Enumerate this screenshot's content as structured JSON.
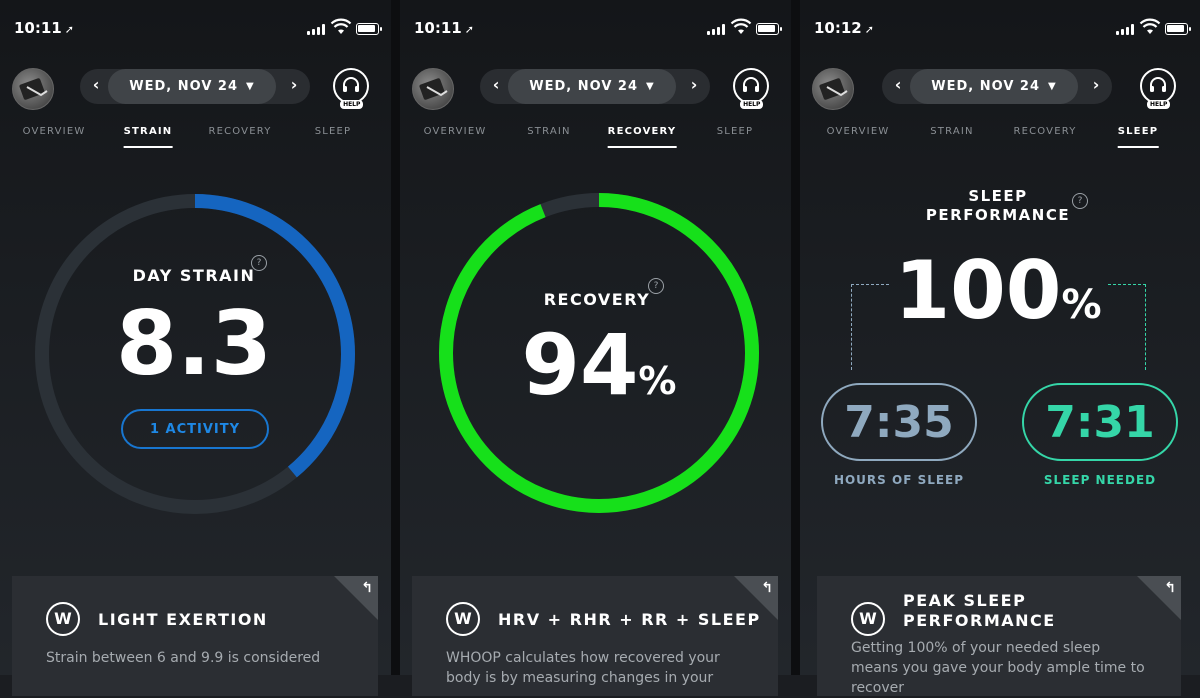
{
  "colors": {
    "strain_blue": "#1565c0",
    "recovery_green": "#16e01a",
    "sleep_teal": "#35d6a8",
    "sleep_grey_blue": "#8fa9bf",
    "track": "#2b3137"
  },
  "screens": [
    {
      "status_time": "10:11",
      "date": "WED, NOV 24",
      "help_label": "HELP",
      "tabs": [
        "OVERVIEW",
        "STRAIN",
        "RECOVERY",
        "SLEEP"
      ],
      "active_tab": "STRAIN",
      "gauge_label": "DAY STRAIN",
      "gauge_value": "8.3",
      "gauge_fraction": 0.39,
      "activity_button": "1 ACTIVITY",
      "card_title": "LIGHT EXERTION",
      "card_text": "Strain between 6 and 9.9 is considered"
    },
    {
      "status_time": "10:11",
      "date": "WED, NOV 24",
      "help_label": "HELP",
      "tabs": [
        "OVERVIEW",
        "STRAIN",
        "RECOVERY",
        "SLEEP"
      ],
      "active_tab": "RECOVERY",
      "gauge_label": "RECOVERY",
      "gauge_value": "94",
      "gauge_unit": "%",
      "gauge_fraction": 0.94,
      "card_title": "HRV + RHR + RR + SLEEP",
      "card_text": "WHOOP calculates how recovered your body is by measuring changes in your"
    },
    {
      "status_time": "10:12",
      "date": "WED, NOV 24",
      "help_label": "HELP",
      "tabs": [
        "OVERVIEW",
        "STRAIN",
        "RECOVERY",
        "SLEEP"
      ],
      "active_tab": "SLEEP",
      "title_line1": "SLEEP",
      "title_line2": "PERFORMANCE",
      "performance_value": "100",
      "performance_unit": "%",
      "hours_of_sleep": "7:35",
      "hours_of_sleep_label": "HOURS OF SLEEP",
      "sleep_needed": "7:31",
      "sleep_needed_label": "SLEEP NEEDED",
      "card_title_line1": "PEAK SLEEP",
      "card_title_line2": "PERFORMANCE",
      "card_text": "Getting 100% of your needed sleep means you gave your body ample time to recover"
    }
  ]
}
